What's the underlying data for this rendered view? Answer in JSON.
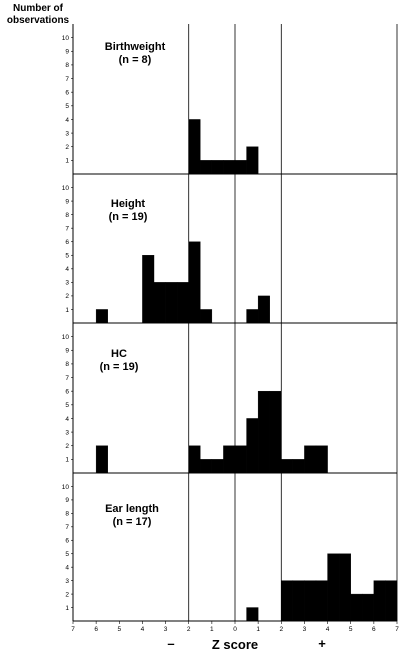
{
  "figure": {
    "ylabel_line1": "Number of",
    "ylabel_line2": "observations",
    "xlabel": "Z score",
    "minus_sign": "–",
    "plus_sign": "+"
  },
  "chart_data": {
    "type": "bar",
    "x_tick_labels": [
      "7",
      "6",
      "5",
      "4",
      "3",
      "2",
      "1",
      "0",
      "1",
      "2",
      "3",
      "4",
      "5",
      "6",
      "7"
    ],
    "x_tick_values": [
      -7,
      -6,
      -5,
      -4,
      -3,
      -2,
      -1,
      0,
      1,
      2,
      3,
      4,
      5,
      6,
      7
    ],
    "xlim": [
      -7,
      7
    ],
    "bin_width": 0.5,
    "ylim": [
      0,
      11
    ],
    "y_ticks": [
      1,
      2,
      3,
      4,
      5,
      6,
      7,
      8,
      9,
      10
    ],
    "reference_lines_x": [
      -2,
      0,
      2
    ],
    "panels": [
      {
        "title_line1": "Birthweight",
        "title_line2": "(n = 8)",
        "bars": [
          {
            "x0": -2.0,
            "x1": -1.5,
            "count": 4
          },
          {
            "x0": -1.5,
            "x1": -1.0,
            "count": 1
          },
          {
            "x0": -1.0,
            "x1": -0.5,
            "count": 1
          },
          {
            "x0": -0.5,
            "x1": 0.0,
            "count": 1
          },
          {
            "x0": 0.0,
            "x1": 0.5,
            "count": 1
          },
          {
            "x0": 0.5,
            "x1": 1.0,
            "count": 2
          }
        ]
      },
      {
        "title_line1": "Height",
        "title_line2": "(n = 19)",
        "bars": [
          {
            "x0": -6.0,
            "x1": -5.5,
            "count": 1
          },
          {
            "x0": -4.0,
            "x1": -3.5,
            "count": 5
          },
          {
            "x0": -3.5,
            "x1": -3.0,
            "count": 3
          },
          {
            "x0": -3.0,
            "x1": -2.5,
            "count": 3
          },
          {
            "x0": -2.5,
            "x1": -2.0,
            "count": 3
          },
          {
            "x0": -2.0,
            "x1": -1.5,
            "count": 6
          },
          {
            "x0": -1.5,
            "x1": -1.0,
            "count": 1
          },
          {
            "x0": 0.5,
            "x1": 1.0,
            "count": 1
          },
          {
            "x0": 1.0,
            "x1": 1.5,
            "count": 2
          }
        ]
      },
      {
        "title_line1": "HC",
        "title_line2": "(n = 19)",
        "bars": [
          {
            "x0": -6.0,
            "x1": -5.5,
            "count": 2
          },
          {
            "x0": -2.0,
            "x1": -1.5,
            "count": 2
          },
          {
            "x0": -1.5,
            "x1": -1.0,
            "count": 1
          },
          {
            "x0": -1.0,
            "x1": -0.5,
            "count": 1
          },
          {
            "x0": -0.5,
            "x1": 0.0,
            "count": 2
          },
          {
            "x0": 0.0,
            "x1": 0.5,
            "count": 2
          },
          {
            "x0": 0.5,
            "x1": 1.0,
            "count": 4
          },
          {
            "x0": 1.0,
            "x1": 1.5,
            "count": 6
          },
          {
            "x0": 1.5,
            "x1": 2.0,
            "count": 6
          },
          {
            "x0": 2.0,
            "x1": 2.5,
            "count": 1
          },
          {
            "x0": 2.5,
            "x1": 3.0,
            "count": 1
          },
          {
            "x0": 3.0,
            "x1": 3.5,
            "count": 2
          },
          {
            "x0": 3.5,
            "x1": 4.0,
            "count": 2
          }
        ]
      },
      {
        "title_line1": "Ear length",
        "title_line2": "(n = 17)",
        "bars": [
          {
            "x0": 0.5,
            "x1": 1.0,
            "count": 1
          },
          {
            "x0": 2.0,
            "x1": 2.5,
            "count": 3
          },
          {
            "x0": 2.5,
            "x1": 3.0,
            "count": 3
          },
          {
            "x0": 3.0,
            "x1": 3.5,
            "count": 3
          },
          {
            "x0": 3.5,
            "x1": 4.0,
            "count": 3
          },
          {
            "x0": 4.0,
            "x1": 4.5,
            "count": 5
          },
          {
            "x0": 4.5,
            "x1": 5.0,
            "count": 5
          },
          {
            "x0": 5.0,
            "x1": 5.5,
            "count": 2
          },
          {
            "x0": 5.5,
            "x1": 6.0,
            "count": 2
          },
          {
            "x0": 6.0,
            "x1": 6.5,
            "count": 3
          },
          {
            "x0": 6.5,
            "x1": 7.0,
            "count": 3
          }
        ]
      }
    ]
  }
}
